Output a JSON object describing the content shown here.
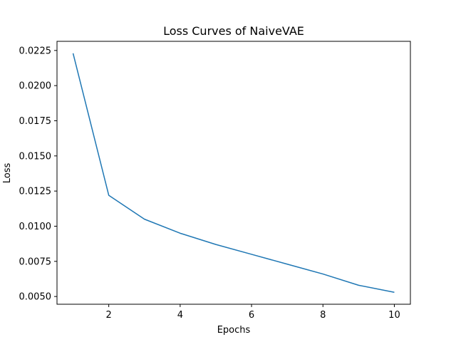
{
  "chart_data": {
    "type": "line",
    "title": "Loss Curves of NaiveVAE",
    "xlabel": "Epochs",
    "ylabel": "Loss",
    "xlim": [
      0.55,
      10.45
    ],
    "ylim": [
      0.00445,
      0.02315
    ],
    "grid": false,
    "x_ticks": [
      2,
      4,
      6,
      8,
      10
    ],
    "x_tick_labels": [
      "2",
      "4",
      "6",
      "8",
      "10"
    ],
    "y_ticks": [
      0.005,
      0.0075,
      0.01,
      0.0125,
      0.015,
      0.0175,
      0.02,
      0.0225
    ],
    "y_tick_labels": [
      "0.0050",
      "0.0075",
      "0.0100",
      "0.0125",
      "0.0150",
      "0.0175",
      "0.0200",
      "0.0225"
    ],
    "line_color": "#1f77b4",
    "series": [
      {
        "x": [
          1,
          2,
          3,
          4,
          5,
          6,
          7,
          8,
          9,
          10
        ],
        "values": [
          0.0223,
          0.0122,
          0.0105,
          0.0095,
          0.0087,
          0.008,
          0.0073,
          0.0066,
          0.0058,
          0.0053
        ]
      }
    ]
  }
}
